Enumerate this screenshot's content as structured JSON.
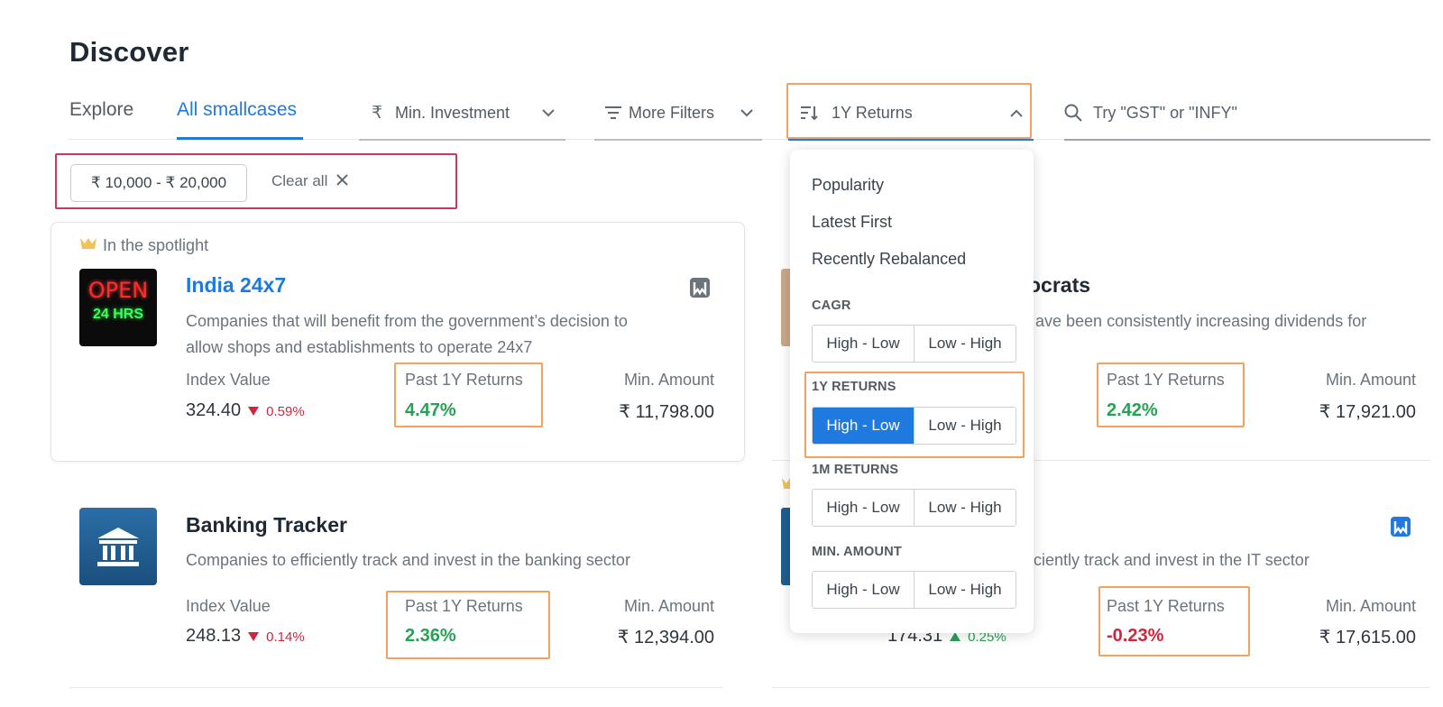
{
  "page": {
    "title": "Discover"
  },
  "tabs": [
    {
      "label": "Explore"
    },
    {
      "label": "All smallcases"
    }
  ],
  "filters": {
    "min_investment": {
      "label": "Min. Investment",
      "icon": "rupee-icon"
    },
    "more_filters": {
      "label": "More Filters",
      "icon": "filter-lines-icon"
    },
    "sort": {
      "label": "1Y Returns",
      "icon": "sort-icon"
    },
    "search": {
      "placeholder": "Try \"GST\" or \"INFY\"",
      "icon": "search-icon"
    }
  },
  "applied": {
    "chip": "₹ 10,000 - ₹ 20,000",
    "clear": "Clear all"
  },
  "cards": [
    {
      "spotlight": "In the spotlight",
      "name": "India 24x7",
      "desc_line1": "Companies that will benefit from the government’s decision to",
      "desc_line2": "allow shops and establishments to operate 24x7",
      "index_label": "Index Value",
      "index_value": "324.40",
      "index_change": "0.59%",
      "returns_label": "Past 1Y Returns",
      "returns": "4.47%",
      "min_label": "Min. Amount",
      "min_amount": "₹ 11,798.00",
      "thumb_line1": "OPEN",
      "thumb_line2": "24 HRS"
    },
    {
      "name_partial": "ocrats",
      "desc_partial": "ave been consistently increasing dividends for",
      "returns_label": "Past 1Y Returns",
      "returns": "2.42%",
      "min_label": "Min. Amount",
      "min_amount": "₹ 17,921.00"
    },
    {
      "name": "Banking Tracker",
      "desc": "Companies to efficiently track and invest in the banking sector",
      "index_label": "Index Value",
      "index_value": "248.13",
      "index_change": "0.14%",
      "returns_label": "Past 1Y Returns",
      "returns": "2.36%",
      "min_label": "Min. Amount",
      "min_amount": "₹ 12,394.00"
    },
    {
      "desc_partial": "ciently track and invest in the IT sector",
      "index_value_partial": "174.31",
      "index_change": "0.25%",
      "returns_label": "Past 1Y Returns",
      "returns": "-0.23%",
      "min_label": "Min. Amount",
      "min_amount": "₹ 17,615.00"
    }
  ],
  "sort_menu": {
    "items": [
      "Popularity",
      "Latest First",
      "Recently Rebalanced"
    ],
    "sections": [
      {
        "title": "CAGR",
        "options": [
          "High - Low",
          "Low - High"
        ]
      },
      {
        "title": "1Y RETURNS",
        "options": [
          "High - Low",
          "Low - High"
        ]
      },
      {
        "title": "1M RETURNS",
        "options": [
          "High - Low",
          "Low - High"
        ]
      },
      {
        "title": "MIN. AMOUNT",
        "options": [
          "High - Low",
          "Low - High"
        ]
      }
    ]
  },
  "colors": {
    "accent": "#1f7ae0",
    "positive": "#27a153",
    "negative": "#d0263c",
    "highlight_orange": "#f5a05c",
    "highlight_red": "#c53b5c"
  }
}
